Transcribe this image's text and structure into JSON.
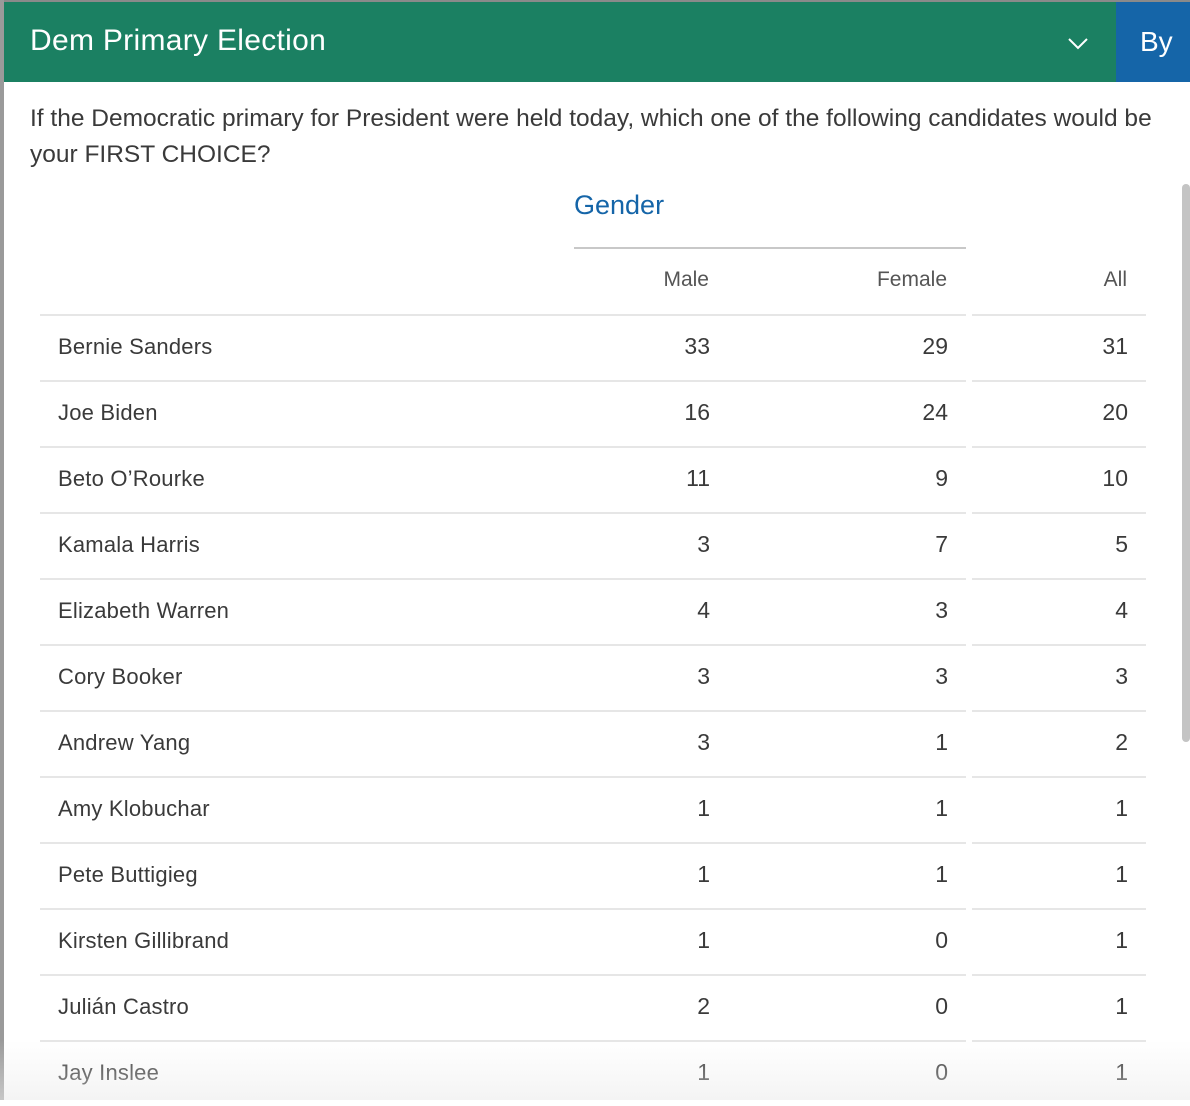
{
  "header": {
    "title": "Dem Primary Election",
    "by_label": "By"
  },
  "question": "If the Democratic primary for President were held today, which one of the following candidates would be your FIRST CHOICE?",
  "group": {
    "label": "Gender"
  },
  "columns": [
    "Male",
    "Female",
    "All"
  ],
  "rows": [
    {
      "name": "Bernie Sanders",
      "male": "33",
      "female": "29",
      "all": "31"
    },
    {
      "name": "Joe Biden",
      "male": "16",
      "female": "24",
      "all": "20"
    },
    {
      "name": "Beto O’Rourke",
      "male": "11",
      "female": "9",
      "all": "10"
    },
    {
      "name": "Kamala Harris",
      "male": "3",
      "female": "7",
      "all": "5"
    },
    {
      "name": "Elizabeth Warren",
      "male": "4",
      "female": "3",
      "all": "4"
    },
    {
      "name": "Cory Booker",
      "male": "3",
      "female": "3",
      "all": "3"
    },
    {
      "name": "Andrew Yang",
      "male": "3",
      "female": "1",
      "all": "2"
    },
    {
      "name": "Amy Klobuchar",
      "male": "1",
      "female": "1",
      "all": "1"
    },
    {
      "name": "Pete Buttigieg",
      "male": "1",
      "female": "1",
      "all": "1"
    },
    {
      "name": "Kirsten Gillibrand",
      "male": "1",
      "female": "0",
      "all": "1"
    },
    {
      "name": "Julián Castro",
      "male": "2",
      "female": "0",
      "all": "1"
    },
    {
      "name": "Jay Inslee",
      "male": "1",
      "female": "0",
      "all": "1"
    }
  ],
  "colors": {
    "header_bg": "#1b8062",
    "by_tab_bg": "#1565a8",
    "group_label": "#1565a8"
  }
}
